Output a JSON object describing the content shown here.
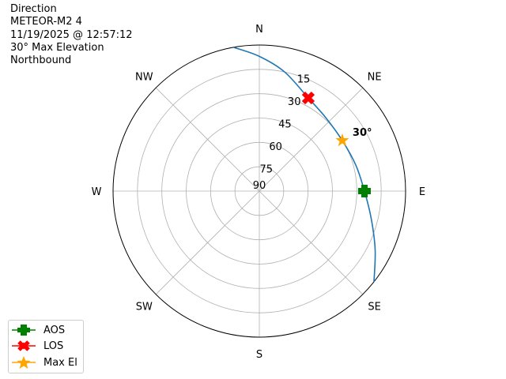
{
  "title_lines": [
    "Direction",
    "METEOR-M2 4",
    "11/19/2025 @ 12:57:12",
    "30° Max Elevation",
    "Northbound"
  ],
  "chart_data": {
    "type": "polar",
    "theta_direction": "clockwise",
    "theta_zero": "N",
    "direction_labels": [
      {
        "label": "N",
        "az": 0
      },
      {
        "label": "NE",
        "az": 45
      },
      {
        "label": "E",
        "az": 90
      },
      {
        "label": "SE",
        "az": 135
      },
      {
        "label": "S",
        "az": 180
      },
      {
        "label": "SW",
        "az": 225
      },
      {
        "label": "W",
        "az": 270
      },
      {
        "label": "NW",
        "az": 315
      }
    ],
    "radial_axis": "elevation",
    "rlim": [
      90,
      0
    ],
    "radial_ticks": [
      "90",
      "75",
      "60",
      "45",
      "30",
      "15"
    ],
    "radial_tick_values": [
      90,
      75,
      60,
      45,
      30,
      15
    ],
    "grid": true,
    "track": {
      "color": "#1f77b4",
      "points": [
        {
          "az": 349.8,
          "el": 0
        },
        {
          "az": 0,
          "el": 7
        },
        {
          "az": 12,
          "el": 15
        },
        {
          "az": 27.7,
          "el": 25.2
        },
        {
          "az": 42,
          "el": 29
        },
        {
          "az": 58.6,
          "el": 30.2
        },
        {
          "az": 75,
          "el": 28.5
        },
        {
          "az": 90,
          "el": 25.3
        },
        {
          "az": 104,
          "el": 19
        },
        {
          "az": 117,
          "el": 10
        },
        {
          "az": 128.4,
          "el": 0
        }
      ]
    },
    "markers": [
      {
        "name": "AOS",
        "az": 90,
        "el": 25.3,
        "color": "#008000",
        "marker": "plus"
      },
      {
        "name": "LOS",
        "az": 27.7,
        "el": 25.2,
        "color": "#ff0000",
        "marker": "x"
      },
      {
        "name": "Max El",
        "az": 58.6,
        "el": 30.2,
        "color": "#ffa500",
        "marker": "star"
      }
    ],
    "annotation": {
      "text": "30°",
      "az": 58.6,
      "el": 30.2
    },
    "legend_position": "lower-left"
  }
}
